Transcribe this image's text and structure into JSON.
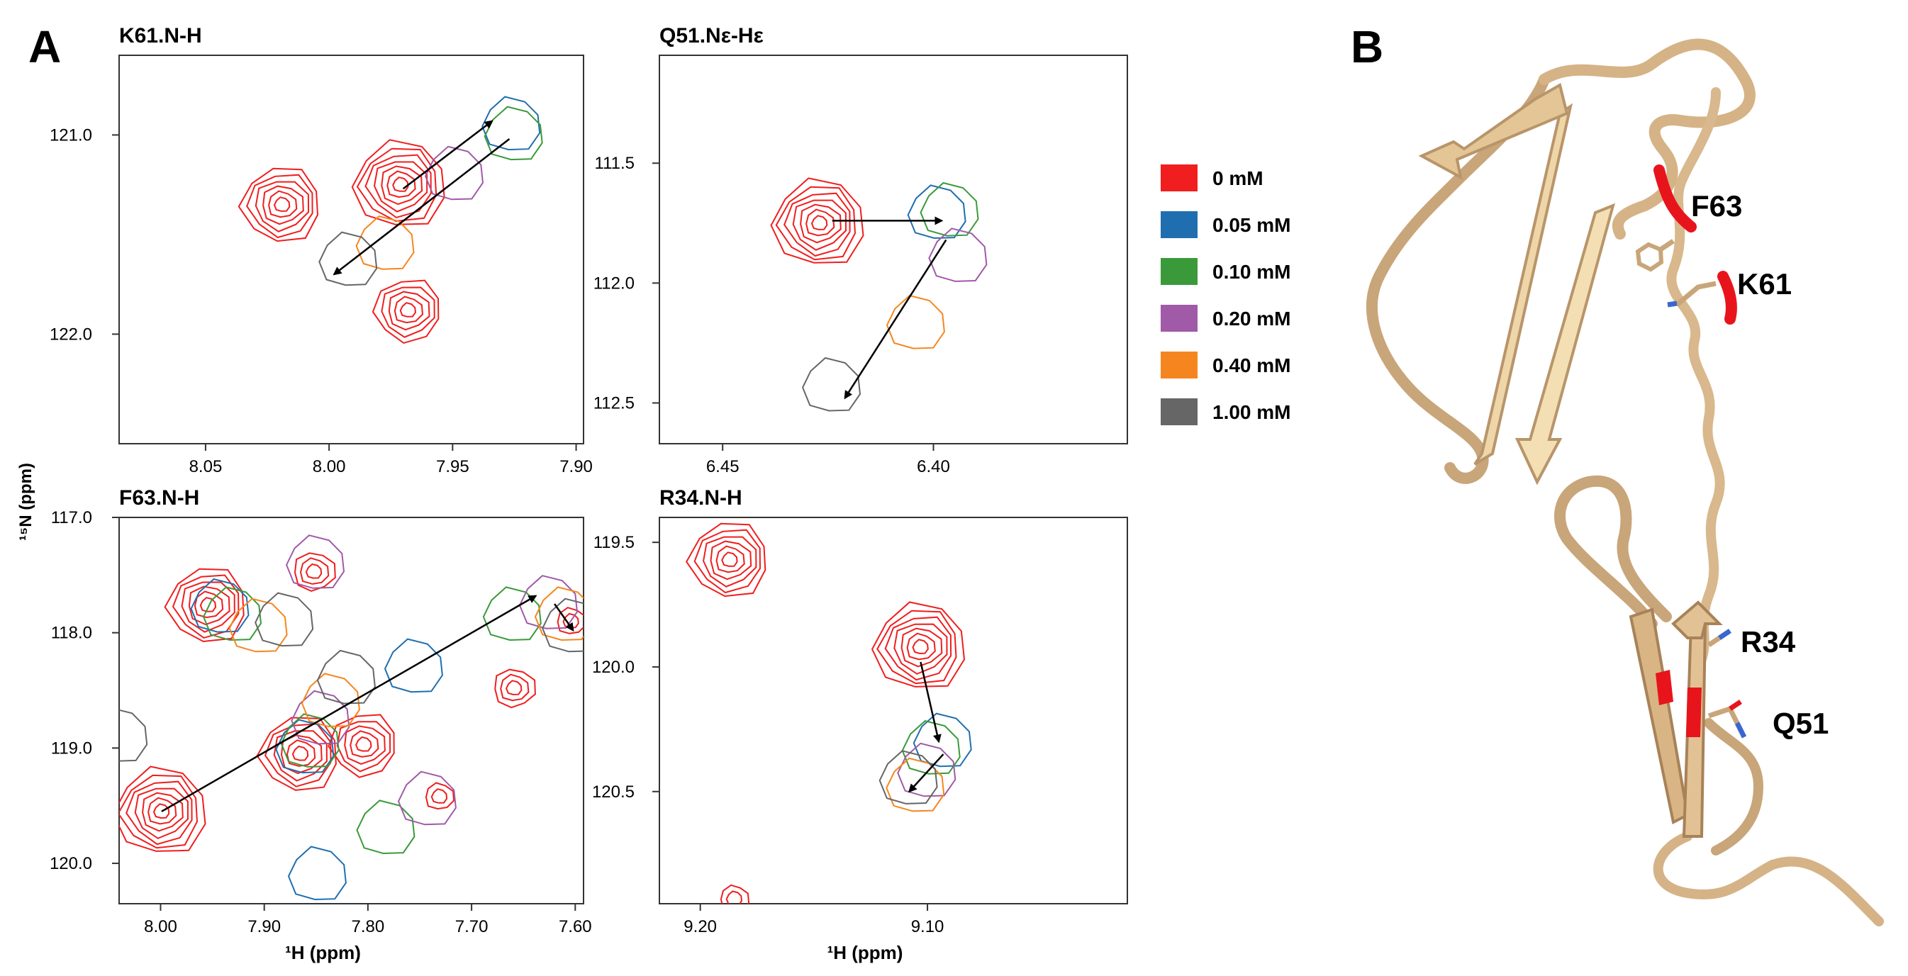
{
  "panel_labels": {
    "a": "A",
    "b": "B"
  },
  "legend": [
    {
      "label": "0 mM",
      "color": "#f01e1e"
    },
    {
      "label": "0.05 mM",
      "color": "#1f6fb0"
    },
    {
      "label": "0.10 mM",
      "color": "#3a9a3a"
    },
    {
      "label": "0.20 mM",
      "color": "#a05aa8"
    },
    {
      "label": "0.40 mM",
      "color": "#f5861f"
    },
    {
      "label": "1.00 mM",
      "color": "#666666"
    }
  ],
  "colors": {
    "ribbon": "#e2c195",
    "ribbon_dark": "#b8956a",
    "highlight": "#e8141c",
    "arrow": "#000000"
  },
  "chart_data": [
    {
      "type": "scatter",
      "title": "K61.N-H",
      "xlabel": "",
      "ylabel": "¹⁵N (ppm)",
      "xlim": [
        8.085,
        7.897
      ],
      "ylim": [
        120.6,
        122.55
      ],
      "xticks": [
        8.05,
        8.0,
        7.95,
        7.9
      ],
      "xtick_labels": [
        "8.05",
        "8.00",
        "7.95",
        "7.90"
      ],
      "yticks": [
        121.0,
        122.0
      ],
      "ytick_labels": [
        "121.0",
        "122.0"
      ],
      "peaks": [
        {
          "series": "0 mM",
          "x": 8.019,
          "y": 121.35,
          "rings": 6
        },
        {
          "series": "0 mM",
          "x": 7.971,
          "y": 121.25,
          "rings": 7
        },
        {
          "series": "0 mM",
          "x": 7.968,
          "y": 121.88,
          "rings": 5
        },
        {
          "series": "0.05 mM",
          "x": 7.926,
          "y": 120.95,
          "rings": 1
        },
        {
          "series": "0.10 mM",
          "x": 7.925,
          "y": 121.0,
          "rings": 1
        },
        {
          "series": "0.20 mM",
          "x": 7.949,
          "y": 121.2,
          "rings": 1
        },
        {
          "series": "0.40 mM",
          "x": 7.977,
          "y": 121.55,
          "rings": 1
        },
        {
          "series": "1.00 mM",
          "x": 7.992,
          "y": 121.63,
          "rings": 1
        }
      ],
      "arrows": [
        {
          "from": [
            7.97,
            121.27
          ],
          "to": [
            7.934,
            120.93
          ]
        },
        {
          "from": [
            7.927,
            121.02
          ],
          "to": [
            7.998,
            121.7
          ]
        }
      ]
    },
    {
      "type": "scatter",
      "title": "Q51.Nε-Hε",
      "xlabel": "",
      "ylabel": "",
      "xlim": [
        6.465,
        6.354
      ],
      "ylim": [
        111.05,
        112.67
      ],
      "xticks": [
        6.45,
        6.4
      ],
      "xtick_labels": [
        "6.45",
        "6.40"
      ],
      "yticks": [
        111.5,
        112.0,
        112.5
      ],
      "ytick_labels": [
        "111.5",
        "112.0",
        "112.5"
      ],
      "peaks": [
        {
          "series": "0 mM",
          "x": 6.427,
          "y": 111.75,
          "rings": 7
        },
        {
          "series": "0.05 mM",
          "x": 6.399,
          "y": 111.71,
          "rings": 1
        },
        {
          "series": "0.10 mM",
          "x": 6.396,
          "y": 111.7,
          "rings": 1
        },
        {
          "series": "0.20 mM",
          "x": 6.394,
          "y": 111.89,
          "rings": 1
        },
        {
          "series": "0.40 mM",
          "x": 6.404,
          "y": 112.17,
          "rings": 1
        },
        {
          "series": "1.00 mM",
          "x": 6.424,
          "y": 112.43,
          "rings": 1
        }
      ],
      "arrows": [
        {
          "from": [
            6.424,
            111.74
          ],
          "to": [
            6.398,
            111.74
          ]
        },
        {
          "from": [
            6.397,
            111.82
          ],
          "to": [
            6.421,
            112.48
          ]
        }
      ]
    },
    {
      "type": "scatter",
      "title": "F63.N-H",
      "xlabel": "¹H (ppm)",
      "ylabel": "",
      "xlim": [
        8.04,
        7.592
      ],
      "ylim": [
        117.0,
        120.35
      ],
      "xticks": [
        8.0,
        7.9,
        7.8,
        7.7,
        7.6
      ],
      "xtick_labels": [
        "8.00",
        "7.90",
        "7.80",
        "7.70",
        "7.60"
      ],
      "yticks": [
        117.0,
        118.0,
        119.0,
        120.0
      ],
      "ytick_labels": [
        "117.0",
        "118.0",
        "119.0",
        "120.0"
      ],
      "peaks": [
        {
          "series": "0 mM",
          "x": 7.999,
          "y": 119.55,
          "rings": 7
        },
        {
          "series": "0 mM",
          "x": 7.954,
          "y": 117.76,
          "rings": 6
        },
        {
          "series": "0 mM",
          "x": 7.865,
          "y": 119.05,
          "rings": 6
        },
        {
          "series": "0 mM",
          "x": 7.804,
          "y": 118.97,
          "rings": 5
        },
        {
          "series": "0 mM",
          "x": 7.852,
          "y": 117.47,
          "rings": 3
        },
        {
          "series": "0 mM",
          "x": 7.659,
          "y": 118.48,
          "rings": 3
        },
        {
          "series": "0 mM",
          "x": 7.731,
          "y": 119.42,
          "rings": 2
        },
        {
          "series": "0 mM",
          "x": 7.604,
          "y": 117.9,
          "rings": 2
        },
        {
          "series": "0.05 mM",
          "x": 7.942,
          "y": 117.78,
          "rings": 1
        },
        {
          "series": "0.05 mM",
          "x": 7.86,
          "y": 119.0,
          "rings": 1
        },
        {
          "series": "0.05 mM",
          "x": 7.755,
          "y": 118.3,
          "rings": 1
        },
        {
          "series": "0.05 mM",
          "x": 7.848,
          "y": 120.1,
          "rings": 1
        },
        {
          "series": "0.10 mM",
          "x": 7.93,
          "y": 117.85,
          "rings": 1
        },
        {
          "series": "0.10 mM",
          "x": 7.855,
          "y": 118.95,
          "rings": 1
        },
        {
          "series": "0.10 mM",
          "x": 7.66,
          "y": 117.85,
          "rings": 1
        },
        {
          "series": "0.10 mM",
          "x": 7.782,
          "y": 119.7,
          "rings": 1
        },
        {
          "series": "0.20 mM",
          "x": 7.85,
          "y": 117.4,
          "rings": 1
        },
        {
          "series": "0.20 mM",
          "x": 7.845,
          "y": 118.75,
          "rings": 1
        },
        {
          "series": "0.20 mM",
          "x": 7.625,
          "y": 117.75,
          "rings": 1
        },
        {
          "series": "0.20 mM",
          "x": 7.742,
          "y": 119.45,
          "rings": 1
        },
        {
          "series": "0.40 mM",
          "x": 7.905,
          "y": 117.95,
          "rings": 1
        },
        {
          "series": "0.40 mM",
          "x": 7.835,
          "y": 118.6,
          "rings": 1
        },
        {
          "series": "0.40 mM",
          "x": 7.61,
          "y": 117.85,
          "rings": 1
        },
        {
          "series": "1.00 mM",
          "x": 7.88,
          "y": 117.9,
          "rings": 1
        },
        {
          "series": "1.00 mM",
          "x": 7.82,
          "y": 118.4,
          "rings": 1
        },
        {
          "series": "1.00 mM",
          "x": 7.603,
          "y": 117.95,
          "rings": 1
        },
        {
          "series": "1.00 mM",
          "x": 8.04,
          "y": 118.9,
          "rings": 1
        }
      ],
      "arrows": [
        {
          "from": [
            7.999,
            119.55
          ],
          "to": [
            7.638,
            117.68
          ]
        },
        {
          "from": [
            7.62,
            117.75
          ],
          "to": [
            7.602,
            117.98
          ]
        }
      ]
    },
    {
      "type": "scatter",
      "title": "R34.N-H",
      "xlabel": "¹H (ppm)",
      "ylabel": "",
      "xlim": [
        9.218,
        9.012
      ],
      "ylim": [
        119.4,
        120.95
      ],
      "xticks": [
        9.2,
        9.1
      ],
      "xtick_labels": [
        "9.20",
        "9.10"
      ],
      "yticks": [
        119.5,
        120.0,
        120.5
      ],
      "ytick_labels": [
        "119.5",
        "120.0",
        "120.5"
      ],
      "peaks": [
        {
          "series": "0 mM",
          "x": 9.187,
          "y": 119.57,
          "rings": 6
        },
        {
          "series": "0 mM",
          "x": 9.103,
          "y": 119.92,
          "rings": 7
        },
        {
          "series": "0 mM",
          "x": 9.185,
          "y": 120.93,
          "rings": 2
        },
        {
          "series": "0.05 mM",
          "x": 9.093,
          "y": 120.3,
          "rings": 1
        },
        {
          "series": "0.10 mM",
          "x": 9.098,
          "y": 120.33,
          "rings": 1
        },
        {
          "series": "0.20 mM",
          "x": 9.1,
          "y": 120.42,
          "rings": 1
        },
        {
          "series": "0.40 mM",
          "x": 9.105,
          "y": 120.48,
          "rings": 1
        },
        {
          "series": "1.00 mM",
          "x": 9.108,
          "y": 120.45,
          "rings": 1
        }
      ],
      "arrows": [
        {
          "from": [
            9.103,
            119.98
          ],
          "to": [
            9.095,
            120.3
          ]
        },
        {
          "from": [
            9.093,
            120.35
          ],
          "to": [
            9.108,
            120.5
          ]
        }
      ]
    }
  ],
  "structure_labels": [
    "F63",
    "K61",
    "R34",
    "Q51"
  ]
}
